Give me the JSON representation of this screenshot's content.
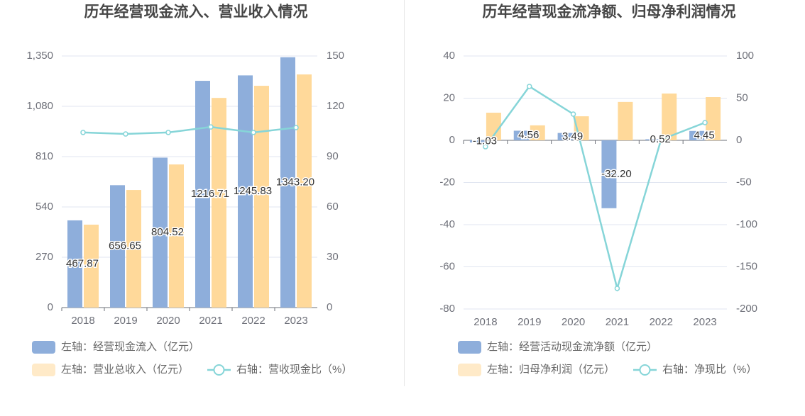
{
  "chart_data": [
    {
      "type": "bar",
      "title": "历年经营现金流入、营业收入情况",
      "categories": [
        "2018",
        "2019",
        "2020",
        "2021",
        "2022",
        "2023"
      ],
      "series": [
        {
          "name": "左轴：经营现金流入（亿元）",
          "color": "#8eaedb",
          "values": [
            467.87,
            656.65,
            804.52,
            1216.71,
            1245.83,
            1343.2
          ],
          "value_labels": [
            "467.87",
            "656.65",
            "804.52",
            "1216.71",
            "1245.83",
            "1343.20"
          ]
        },
        {
          "name": "左轴：营业总收入（亿元）",
          "color": "#ffd99a",
          "values": [
            445,
            631,
            768,
            1125,
            1190,
            1251
          ]
        },
        {
          "name": "右轴：营收现金比（%）",
          "color": "#86d5d8",
          "type": "line",
          "axis": "y2",
          "values": [
            104.4,
            103.5,
            104.4,
            107.7,
            104.4,
            107.3
          ]
        }
      ],
      "ylim": [
        0,
        1350
      ],
      "yticks": [
        0,
        270,
        540,
        810,
        {
          "value": 1080,
          "label": "1,080"
        },
        {
          "value": 1350,
          "label": "1,350"
        }
      ],
      "y2lim": [
        0,
        150
      ],
      "y2ticks": [
        0,
        30,
        60,
        90,
        120,
        150
      ],
      "grid": true
    },
    {
      "type": "bar",
      "title": "历年经营现金流净额、归母净利润情况",
      "categories": [
        "2018",
        "2019",
        "2020",
        "2021",
        "2022",
        "2023"
      ],
      "series": [
        {
          "name": "左轴：经营活动现金流净额（亿元）",
          "color": "#8eaedb",
          "values": [
            -1.03,
            4.56,
            3.49,
            -32.2,
            0.52,
            4.45
          ],
          "value_labels": [
            "-1.03",
            "4.56",
            "3.49",
            "-32.20",
            "0.52",
            "4.45"
          ]
        },
        {
          "name": "左轴：归母净利润（亿元）",
          "color": "#ffd99a",
          "values": [
            13.1,
            7.1,
            11.4,
            18.2,
            22.2,
            20.5
          ]
        },
        {
          "name": "右轴：净现比（%）",
          "color": "#86d5d8",
          "type": "line",
          "axis": "y2",
          "values": [
            -7.6,
            63.9,
            31.1,
            -175.6,
            0.8,
            21
          ]
        }
      ],
      "ylim": [
        -80,
        40
      ],
      "yticks": [
        -80,
        -60,
        -40,
        -20,
        0,
        20,
        40
      ],
      "y2lim": [
        -200,
        100
      ],
      "y2ticks": [
        -200,
        -150,
        -100,
        -50,
        0,
        50,
        100
      ],
      "grid": true
    }
  ]
}
